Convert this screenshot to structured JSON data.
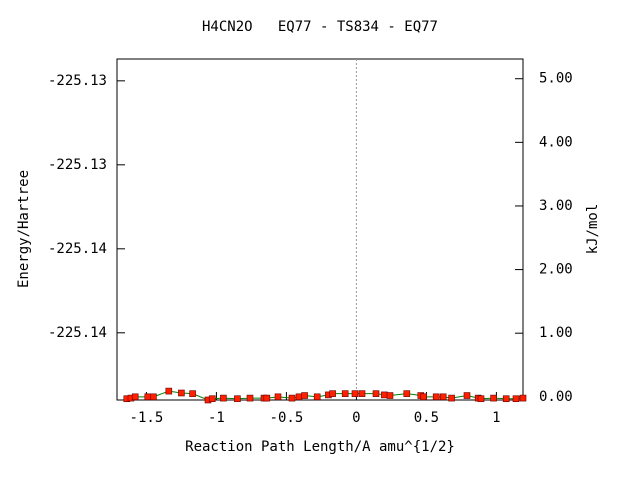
{
  "chart_data": {
    "type": "line",
    "title": "H4CN2O   EQ77 - TS834 - EQ77",
    "x_label": "Reaction Path Length/A amu^{1/2}",
    "y_label": "Energy/Hartree",
    "y2_label": "kJ/mol",
    "xlim": [
      -1.71,
      1.19
    ],
    "xticks": [
      -1.5,
      -1,
      -0.5,
      0,
      0.5,
      1
    ],
    "ylim": [
      -225.1361,
      -225.13407
    ],
    "yticks": [
      {
        "value": -225.1342,
        "label": "-225.13"
      },
      {
        "value": -225.1347,
        "label": "-225.13"
      },
      {
        "value": -225.1352,
        "label": "-225.14"
      },
      {
        "value": -225.1357,
        "label": "-225.14"
      }
    ],
    "y2lim": [
      -0.05,
      5.31
    ],
    "y2ticks": [
      {
        "value": 0,
        "label": "0.00"
      },
      {
        "value": 1,
        "label": "1.00"
      },
      {
        "value": 2,
        "label": "2.00"
      },
      {
        "value": 3,
        "label": "3.00"
      },
      {
        "value": 4,
        "label": "4.00"
      },
      {
        "value": 5,
        "label": "5.00"
      }
    ],
    "vline_x": 0,
    "series": [
      {
        "color": "#008000",
        "marker_color": "#ff2000",
        "axis": "y2",
        "x": [
          -1.64,
          -1.61,
          -1.58,
          -1.49,
          -1.45,
          -1.34,
          -1.25,
          -1.17,
          -1.06,
          -1.03,
          -0.95,
          -0.85,
          -0.76,
          -0.66,
          -0.64,
          -0.56,
          -0.46,
          -0.41,
          -0.37,
          -0.28,
          -0.2,
          -0.17,
          -0.08,
          -0.01,
          0.04,
          0.14,
          0.2,
          0.24,
          0.36,
          0.46,
          0.48,
          0.57,
          0.62,
          0.68,
          0.79,
          0.87,
          0.89,
          0.98,
          1.07,
          1.14,
          1.19
        ],
        "values": [
          -0.03,
          -0.02,
          0,
          0,
          0,
          0.09,
          0.06,
          0.05,
          -0.05,
          -0.03,
          -0.02,
          -0.03,
          -0.02,
          -0.02,
          -0.02,
          0,
          -0.02,
          0,
          0.02,
          0,
          0.03,
          0.05,
          0.05,
          0.05,
          0.05,
          0.05,
          0.03,
          0.02,
          0.05,
          0.02,
          0,
          0,
          0,
          -0.02,
          0.02,
          -0.02,
          -0.03,
          -0.02,
          -0.03,
          -0.03,
          -0.02
        ]
      }
    ]
  }
}
